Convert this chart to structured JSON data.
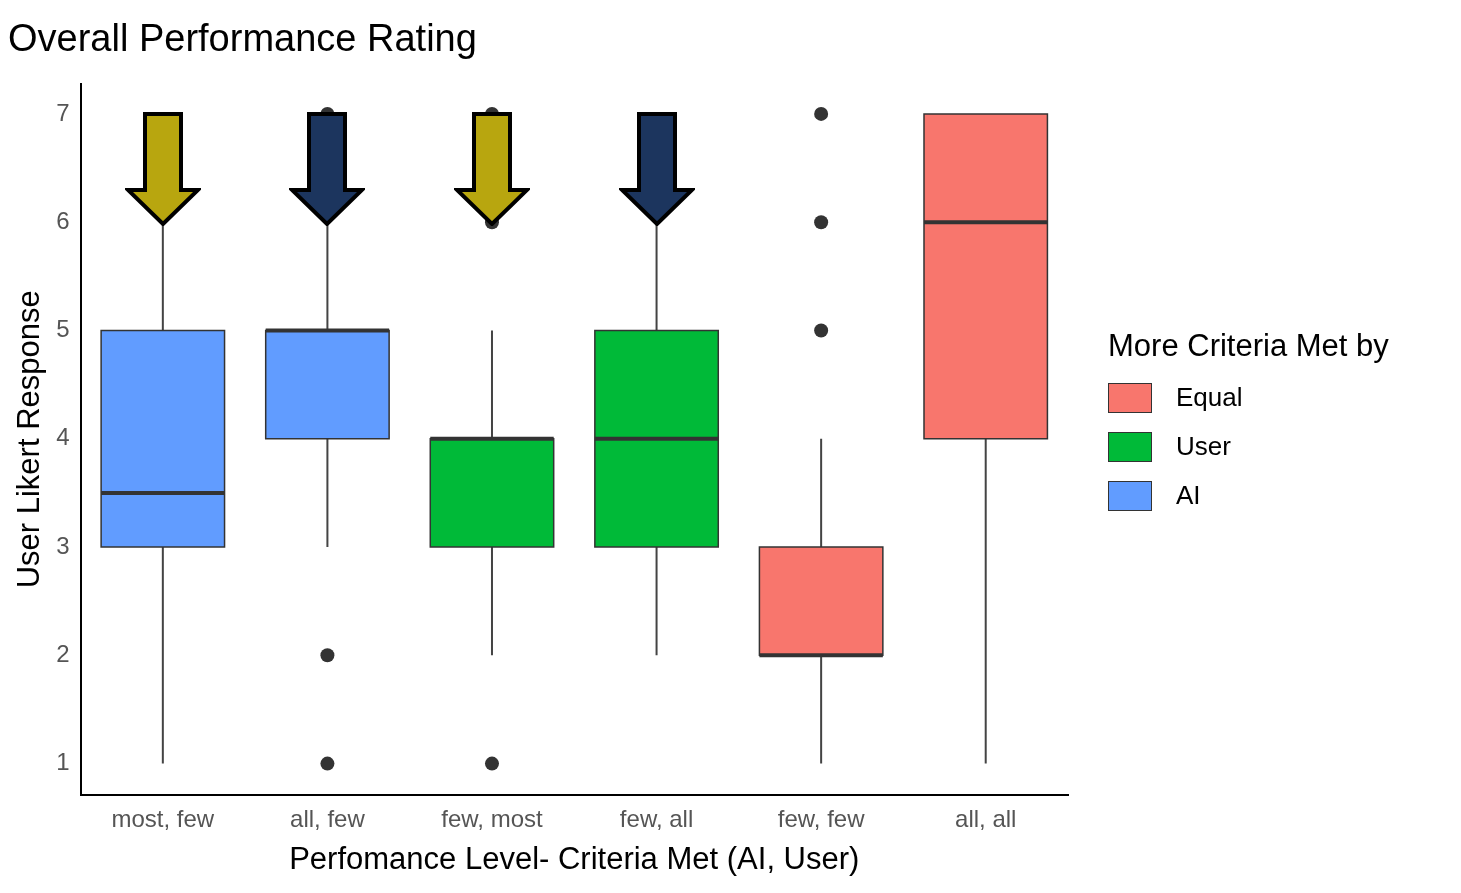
{
  "chart_data": {
    "type": "box",
    "title": "Overall Performance Rating",
    "xlabel": "Perfomance Level- Criteria Met (AI, User)",
    "ylabel": "User Likert Response",
    "legend_title": "More Criteria Met by",
    "categories": [
      "most, few",
      "all, few",
      "few, most",
      "few, all",
      "few, few",
      "all, all"
    ],
    "ylim": [
      0.71,
      7.28
    ],
    "yticks": [
      1,
      2,
      3,
      4,
      5,
      6,
      7
    ],
    "grid": false,
    "legend": "right",
    "series": [
      {
        "name": "Equal",
        "color": "#f8766d",
        "boxes": [
          null,
          null,
          null,
          null,
          {
            "low": 1,
            "q1": 2,
            "median": 2,
            "q3": 3,
            "high": 4,
            "outliers": [
              5,
              6,
              7
            ]
          },
          {
            "low": 1,
            "q1": 4,
            "median": 6,
            "q3": 7,
            "high": 7
          }
        ]
      },
      {
        "name": "User",
        "color": "#00ba38",
        "boxes": [
          null,
          null,
          {
            "low": 2,
            "q1": 3,
            "median": 4,
            "q3": 4,
            "high": 5,
            "outliers": [
              1,
              6,
              7
            ]
          },
          {
            "low": 2,
            "q1": 3,
            "median": 4,
            "q3": 5,
            "high": 7
          },
          null,
          null
        ]
      },
      {
        "name": "AI",
        "color": "#619cff",
        "boxes": [
          {
            "low": 1,
            "q1": 3,
            "median": 3.5,
            "q3": 5,
            "high": 7
          },
          {
            "low": 3,
            "q1": 4,
            "median": 5,
            "q3": 5,
            "high": 6,
            "outliers": [
              1,
              2,
              7
            ]
          },
          null,
          null,
          null,
          null
        ]
      }
    ]
  }
}
